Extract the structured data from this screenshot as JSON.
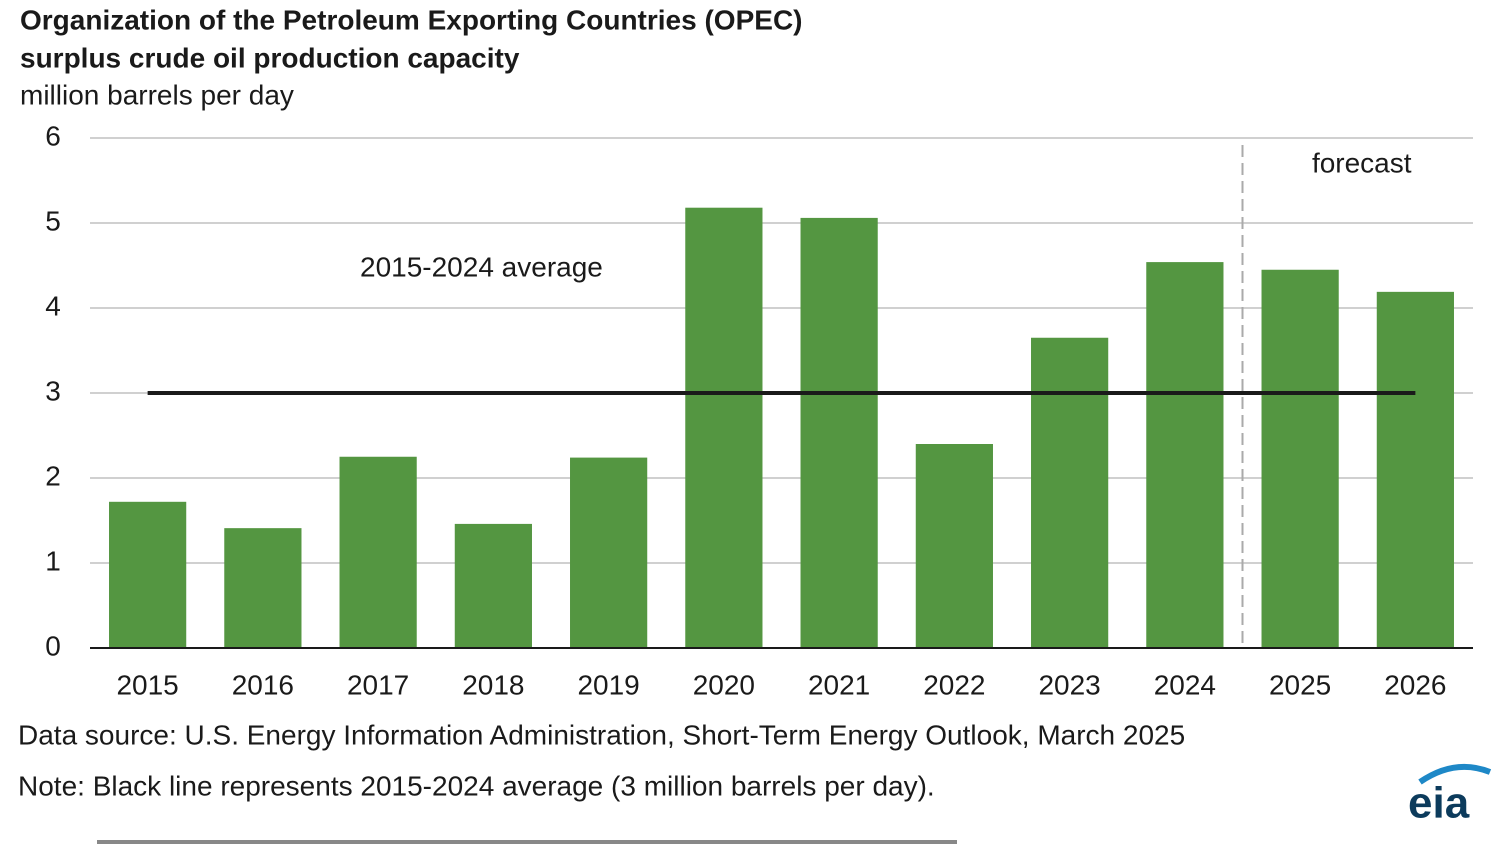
{
  "chart_data": {
    "type": "bar",
    "title": [
      "Organization of the Petroleum Exporting Countries (OPEC)",
      "surplus crude oil production capacity"
    ],
    "subtitle": "million barrels per day",
    "categories": [
      "2015",
      "2016",
      "2017",
      "2018",
      "2019",
      "2020",
      "2021",
      "2022",
      "2023",
      "2024",
      "2025",
      "2026"
    ],
    "values": [
      1.72,
      1.41,
      2.25,
      1.46,
      2.24,
      5.18,
      5.06,
      2.4,
      3.65,
      4.54,
      4.45,
      4.19
    ],
    "color": "#549641",
    "ylim": [
      0,
      6
    ],
    "yticks": [
      0,
      1,
      2,
      3,
      4,
      5,
      6
    ],
    "grid": true,
    "average": {
      "value": 3,
      "label": "2015-2024 average"
    },
    "forecast": {
      "label": "forecast",
      "start": "2025"
    },
    "source": "Data source: U.S. Energy Information Administration, Short-Term Energy Outlook, March 2025",
    "note": "Note: Black line represents 2015-2024 average (3 million barrels per day).",
    "logo": "eia"
  }
}
